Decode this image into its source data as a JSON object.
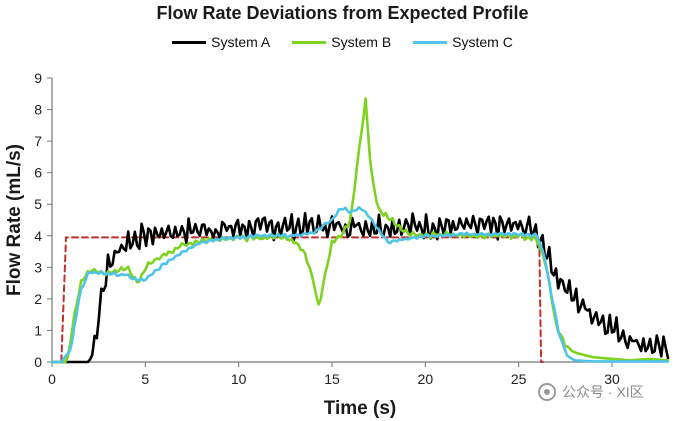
{
  "chart_data": {
    "type": "line",
    "title": "Flow Rate Deviations from Expected Profile",
    "xlabel": "Time (s)",
    "ylabel": "Flow Rate (mL/s)",
    "xlim": [
      0,
      33
    ],
    "ylim": [
      0,
      9
    ],
    "x_ticks": [
      0,
      5,
      10,
      15,
      20,
      25,
      30
    ],
    "y_ticks": [
      0,
      1,
      2,
      3,
      4,
      5,
      6,
      7,
      8,
      9
    ],
    "grid": false,
    "legend_position": "top",
    "series": [
      {
        "name": "System A",
        "color": "#000000",
        "x": [
          0,
          2.0,
          2.3,
          2.6,
          3.0,
          3.5,
          4.0,
          5,
          6,
          7,
          8,
          9,
          10,
          11,
          12,
          13,
          14,
          15,
          16,
          17,
          18,
          19,
          20,
          21,
          22,
          23,
          24,
          25,
          25.8,
          26.3,
          26.8,
          27.3,
          28,
          29,
          30,
          31,
          32,
          33
        ],
        "y": [
          0,
          0,
          0.6,
          2.0,
          3.0,
          3.5,
          3.8,
          4.0,
          4.1,
          4.15,
          4.2,
          4.2,
          4.25,
          4.25,
          4.3,
          4.3,
          4.3,
          4.3,
          4.3,
          4.3,
          4.3,
          4.3,
          4.3,
          4.3,
          4.3,
          4.3,
          4.3,
          4.3,
          4.2,
          3.8,
          3.0,
          2.5,
          2.0,
          1.5,
          1.1,
          0.7,
          0.5,
          0.35
        ],
        "noise": 0.45
      },
      {
        "name": "System B",
        "color": "#7ed321",
        "x": [
          0,
          0.8,
          1.2,
          1.6,
          2,
          3,
          4,
          4.6,
          5,
          6,
          7,
          8,
          9,
          10,
          11,
          12,
          13,
          13.5,
          14,
          14.3,
          14.6,
          15,
          15.5,
          16,
          16.4,
          16.8,
          17.1,
          17.5,
          18,
          19,
          20,
          21,
          22,
          23,
          24,
          25,
          26,
          26.5,
          27,
          27.5,
          28,
          29,
          30,
          31,
          32,
          33
        ],
        "y": [
          0,
          0,
          1.5,
          2.6,
          2.9,
          2.8,
          3.0,
          2.5,
          3.0,
          3.4,
          3.7,
          3.85,
          3.9,
          3.95,
          3.9,
          4.0,
          3.85,
          3.5,
          2.6,
          1.75,
          2.7,
          3.8,
          4.0,
          4.5,
          6.5,
          8.3,
          6.0,
          4.8,
          4.6,
          4.1,
          4.0,
          4.05,
          4.0,
          4.0,
          4.0,
          4.0,
          3.9,
          3.0,
          1.2,
          0.5,
          0.3,
          0.15,
          0.1,
          0.05,
          0.1,
          0.05
        ],
        "noise": 0.1
      },
      {
        "name": "System C",
        "color": "#4fc3e8",
        "x": [
          0,
          0.5,
          1.0,
          1.5,
          2,
          3,
          4,
          4.5,
          5,
          6,
          7,
          8,
          9,
          10,
          11,
          12,
          13,
          14,
          15,
          15.5,
          16,
          16.5,
          17,
          17.5,
          18,
          19,
          20,
          21,
          22,
          23,
          24,
          25,
          26,
          26.4,
          26.8,
          27.2,
          27.6,
          28,
          29,
          30,
          31,
          32,
          33
        ],
        "y": [
          0,
          0,
          0.4,
          2.2,
          2.85,
          2.8,
          2.75,
          2.6,
          2.6,
          3.1,
          3.5,
          3.8,
          3.9,
          3.95,
          4.0,
          4.0,
          4.0,
          4.1,
          4.5,
          4.9,
          4.75,
          4.9,
          4.6,
          4.2,
          3.8,
          3.9,
          4.0,
          4.0,
          4.05,
          4.05,
          4.05,
          4.05,
          4.0,
          3.3,
          2.0,
          0.8,
          0.2,
          0.05,
          0.02,
          0.02,
          0.02,
          0.02,
          0.02
        ],
        "noise": 0.06
      },
      {
        "name": "",
        "color": "#c0302b",
        "dashed": true,
        "x": [
          0,
          0.5,
          0.75,
          26.1,
          26.2,
          26.3
        ],
        "y": [
          0,
          0,
          3.95,
          3.95,
          0,
          0
        ],
        "noise": 0
      }
    ]
  },
  "watermark": {
    "text": "公众号 · XI区",
    "icon": "wechat-icon"
  }
}
